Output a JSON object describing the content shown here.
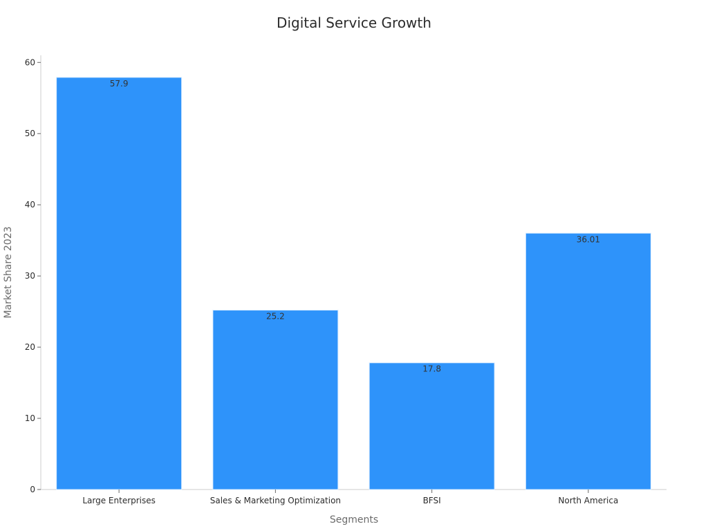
{
  "chart_data": {
    "type": "bar",
    "title": "Digital Service Growth",
    "xlabel": "Segments",
    "ylabel": "Market Share 2023",
    "categories": [
      "Large Enterprises",
      "Sales & Marketing Optimization",
      "BFSI",
      "North America"
    ],
    "values": [
      57.9,
      25.2,
      17.8,
      36.01
    ],
    "value_labels": [
      "57.9",
      "25.2",
      "17.8",
      "36.01"
    ],
    "ylim": [
      0,
      61
    ],
    "yticks": [
      0,
      10,
      20,
      30,
      40,
      50,
      60
    ],
    "grid": false,
    "bar_color": "#2e93fa"
  }
}
